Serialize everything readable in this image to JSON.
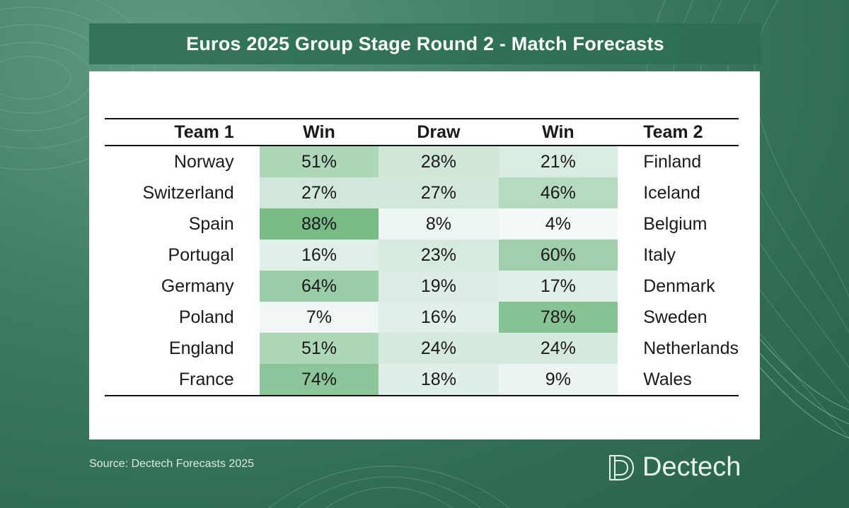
{
  "title": "Euros 2025 Group Stage Round 2 - Match Forecasts",
  "source": "Source: Dectech Forecasts 2025",
  "brand": "Dectech",
  "colors": {
    "background": "#3f7d64",
    "band": "#2d6e52",
    "cell_max": "#78bb87",
    "cell_min": "#f3f8f9"
  },
  "chart_data": {
    "type": "table",
    "columns": [
      "Team 1",
      "Win",
      "Draw",
      "Win",
      "Team 2"
    ],
    "rows": [
      {
        "team1": "Norway",
        "win1": "51%",
        "draw": "28%",
        "win2": "21%",
        "team2": "Finland",
        "values": [
          51,
          28,
          21
        ]
      },
      {
        "team1": "Switzerland",
        "win1": "27%",
        "draw": "27%",
        "win2": "46%",
        "team2": "Iceland",
        "values": [
          27,
          27,
          46
        ]
      },
      {
        "team1": "Spain",
        "win1": "88%",
        "draw": "8%",
        "win2": "4%",
        "team2": "Belgium",
        "values": [
          88,
          8,
          4
        ]
      },
      {
        "team1": "Portugal",
        "win1": "16%",
        "draw": "23%",
        "win2": "60%",
        "team2": "Italy",
        "values": [
          16,
          23,
          60
        ]
      },
      {
        "team1": "Germany",
        "win1": "64%",
        "draw": "19%",
        "win2": "17%",
        "team2": "Denmark",
        "values": [
          64,
          19,
          17
        ]
      },
      {
        "team1": "Poland",
        "win1": "7%",
        "draw": "16%",
        "win2": "78%",
        "team2": "Sweden",
        "values": [
          7,
          16,
          78
        ]
      },
      {
        "team1": "England",
        "win1": "51%",
        "draw": "24%",
        "win2": "24%",
        "team2": "Netherlands",
        "values": [
          51,
          24,
          24
        ]
      },
      {
        "team1": "France",
        "win1": "74%",
        "draw": "18%",
        "win2": "9%",
        "team2": "Wales",
        "values": [
          74,
          18,
          9
        ]
      }
    ]
  }
}
